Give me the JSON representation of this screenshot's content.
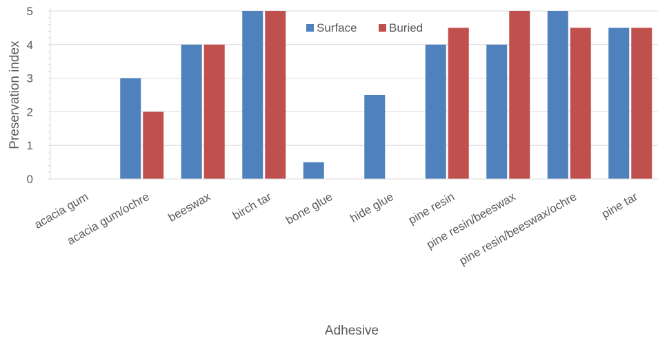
{
  "chart_data": {
    "type": "bar",
    "title": "",
    "xlabel": "Adhesive",
    "ylabel": "Preservation index",
    "ylim": [
      0,
      5
    ],
    "yticks": [
      0,
      1,
      2,
      3,
      4,
      5
    ],
    "grid": true,
    "legend_position": "top-right",
    "categories": [
      "acacia gum",
      "acacia gum/ochre",
      "beeswax",
      "birch tar",
      "bone glue",
      "hide glue",
      "pine resin",
      "pine resin/beeswax",
      "pine resin/beeswax/ochre",
      "pine tar"
    ],
    "series": [
      {
        "name": "Surface",
        "color": "#4f81bd",
        "values": [
          null,
          3,
          4,
          5,
          0.5,
          2.5,
          4,
          4,
          5,
          4.5
        ]
      },
      {
        "name": "Buried",
        "color": "#c0504d",
        "values": [
          null,
          2,
          4,
          5,
          null,
          null,
          4.5,
          5,
          4.5,
          4.5
        ]
      }
    ]
  }
}
